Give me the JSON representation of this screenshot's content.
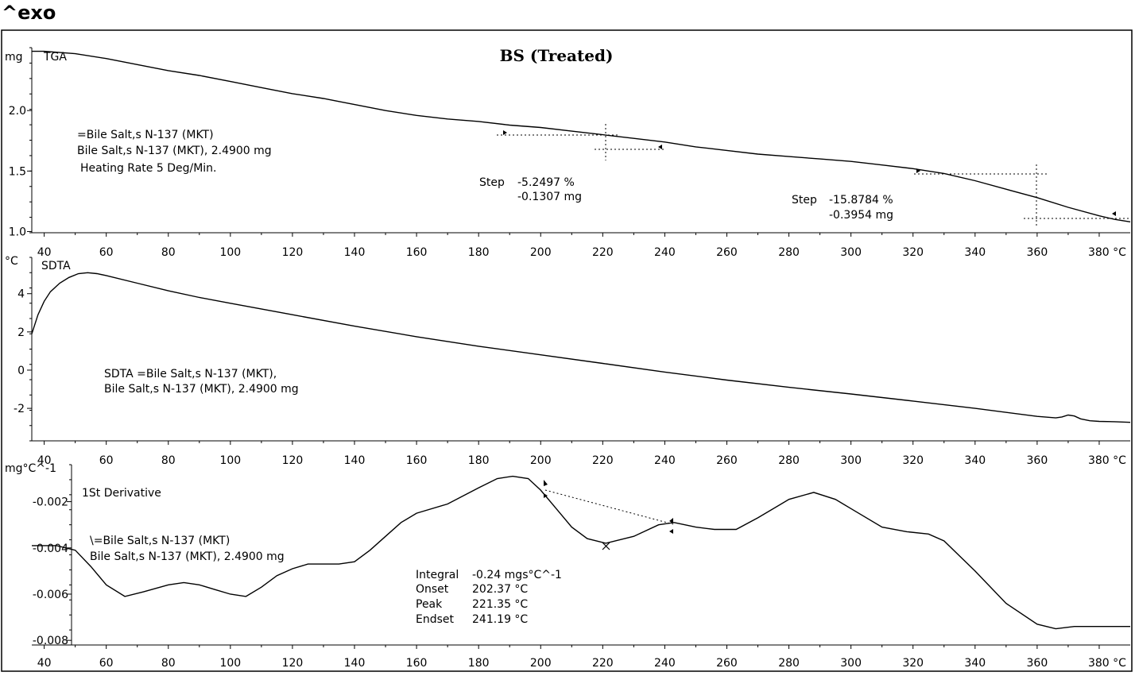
{
  "header": {
    "exo_label": "^exo"
  },
  "chart_data": [
    {
      "type": "line",
      "panel": "tga",
      "title": "BS (Treated)",
      "curve_label": "TGA",
      "ylabel": "mg",
      "xlim": [
        36,
        390
      ],
      "ylim": [
        0.99,
        2.52
      ],
      "x_ticks": [
        "40",
        "60",
        "80",
        "100",
        "120",
        "140",
        "160",
        "180",
        "200",
        "220",
        "240",
        "260",
        "280",
        "300",
        "320",
        "340",
        "360",
        "380 °C"
      ],
      "y_ticks": [
        {
          "value": 2.0,
          "label": "2.0"
        },
        {
          "value": 1.5,
          "label": "1.5"
        },
        {
          "value": 1.0,
          "label": "1.0"
        }
      ],
      "series": [
        {
          "x": [
            36,
            40,
            50,
            60,
            70,
            80,
            90,
            100,
            110,
            120,
            130,
            140,
            150,
            160,
            170,
            180,
            190,
            200,
            210,
            220,
            230,
            240,
            250,
            260,
            270,
            280,
            290,
            300,
            310,
            320,
            330,
            340,
            350,
            360,
            370,
            380,
            385,
            390
          ],
          "y": [
            2.49,
            2.49,
            2.47,
            2.43,
            2.38,
            2.33,
            2.29,
            2.24,
            2.19,
            2.14,
            2.1,
            2.05,
            2.0,
            1.96,
            1.93,
            1.91,
            1.88,
            1.86,
            1.83,
            1.8,
            1.77,
            1.74,
            1.7,
            1.67,
            1.64,
            1.62,
            1.6,
            1.58,
            1.55,
            1.52,
            1.48,
            1.42,
            1.35,
            1.28,
            1.2,
            1.13,
            1.1,
            1.08
          ]
        }
      ],
      "annotations": {
        "sample_lines": [
          "=Bile Salt,s N-137 (MKT)",
          "Bile Salt,s N-137 (MKT), 2.4900 mg",
          "Heating Rate 5 Deg/Min."
        ],
        "step1": {
          "label": "Step",
          "percent": "-5.2497 %",
          "mass": "-0.1307 mg"
        },
        "step2": {
          "label": "Step",
          "percent": "-15.8784 %",
          "mass": "-0.3954 mg"
        }
      }
    },
    {
      "type": "line",
      "panel": "sdta",
      "curve_label": "SDTA",
      "ylabel": "°C",
      "xlim": [
        36,
        390
      ],
      "ylim": [
        -3.7,
        5.9
      ],
      "x_ticks": [
        "40",
        "60",
        "80",
        "100",
        "120",
        "140",
        "160",
        "180",
        "200",
        "220",
        "240",
        "260",
        "280",
        "300",
        "320",
        "340",
        "360",
        "380 °C"
      ],
      "y_ticks": [
        {
          "value": 4,
          "label": "4"
        },
        {
          "value": 2,
          "label": "2"
        },
        {
          "value": 0,
          "label": "0"
        },
        {
          "value": -2,
          "label": "-2"
        }
      ],
      "series": [
        {
          "x": [
            36,
            38,
            40,
            42,
            45,
            48,
            51,
            54,
            57,
            60,
            70,
            80,
            90,
            100,
            120,
            140,
            160,
            180,
            200,
            220,
            240,
            260,
            280,
            300,
            320,
            340,
            360,
            366,
            368,
            370,
            372,
            374,
            377,
            380,
            385,
            390
          ],
          "y": [
            1.9,
            2.9,
            3.6,
            4.1,
            4.55,
            4.85,
            5.05,
            5.1,
            5.05,
            4.95,
            4.55,
            4.15,
            3.8,
            3.5,
            2.9,
            2.3,
            1.75,
            1.25,
            0.8,
            0.35,
            -0.1,
            -0.52,
            -0.9,
            -1.25,
            -1.62,
            -2.0,
            -2.42,
            -2.5,
            -2.45,
            -2.35,
            -2.4,
            -2.55,
            -2.65,
            -2.68,
            -2.7,
            -2.73
          ]
        }
      ],
      "annotations": {
        "sample_lines": [
          "SDTA =Bile Salt,s N-137 (MKT),",
          "Bile Salt,s N-137 (MKT), 2.4900 mg"
        ]
      }
    },
    {
      "type": "line",
      "panel": "derivative",
      "curve_label": "1St Derivative",
      "ylabel": "mg°C^-1",
      "xlim": [
        36,
        390
      ],
      "ylim": [
        -0.0082,
        -0.0004
      ],
      "x_ticks": [
        "40",
        "60",
        "80",
        "100",
        "120",
        "140",
        "160",
        "180",
        "200",
        "220",
        "240",
        "260",
        "280",
        "300",
        "320",
        "340",
        "360",
        "380 °C"
      ],
      "y_ticks": [
        {
          "value": -0.002,
          "label": "-0.002"
        },
        {
          "value": -0.004,
          "label": "-0.004"
        },
        {
          "value": -0.006,
          "label": "-0.006"
        },
        {
          "value": -0.008,
          "label": "-0.008"
        }
      ],
      "series": [
        {
          "x": [
            36,
            44,
            50,
            55,
            60,
            66,
            72,
            80,
            85,
            90,
            95,
            100,
            105,
            110,
            115,
            120,
            125,
            130,
            135,
            140,
            145,
            150,
            155,
            160,
            170,
            180,
            186,
            191,
            196,
            200,
            205,
            210,
            215,
            221,
            230,
            238,
            243,
            250,
            256,
            263,
            270,
            280,
            288,
            295,
            300,
            310,
            318,
            325,
            330,
            340,
            350,
            360,
            366,
            372,
            380,
            390
          ],
          "y": [
            -0.0039,
            -0.0039,
            -0.0041,
            -0.0048,
            -0.0056,
            -0.0061,
            -0.0059,
            -0.0056,
            -0.0055,
            -0.0056,
            -0.0058,
            -0.006,
            -0.0061,
            -0.0057,
            -0.0052,
            -0.0049,
            -0.0047,
            -0.0047,
            -0.0047,
            -0.0046,
            -0.0041,
            -0.0035,
            -0.0029,
            -0.0025,
            -0.0021,
            -0.0014,
            -0.001,
            -0.0009,
            -0.001,
            -0.0015,
            -0.0023,
            -0.0031,
            -0.0036,
            -0.0038,
            -0.0035,
            -0.003,
            -0.0029,
            -0.0031,
            -0.0032,
            -0.0032,
            -0.0027,
            -0.0019,
            -0.0016,
            -0.0019,
            -0.0023,
            -0.0031,
            -0.0033,
            -0.0034,
            -0.0037,
            -0.005,
            -0.0064,
            -0.0073,
            -0.0075,
            -0.0074,
            -0.0074,
            -0.0074
          ]
        }
      ],
      "annotations": {
        "sample_lines": [
          "\\=Bile Salt,s N-137 (MKT)",
          "Bile Salt,s N-137 (MKT), 2.4900 mg"
        ],
        "integral": {
          "label": "Integral",
          "value": "-0.24 mgs°C^-1"
        },
        "onset": {
          "label": "Onset",
          "value": "202.37 °C"
        },
        "peak": {
          "label": "Peak",
          "value": "221.35 °C"
        },
        "endset": {
          "label": "Endset",
          "value": "241.19 °C"
        }
      }
    }
  ]
}
